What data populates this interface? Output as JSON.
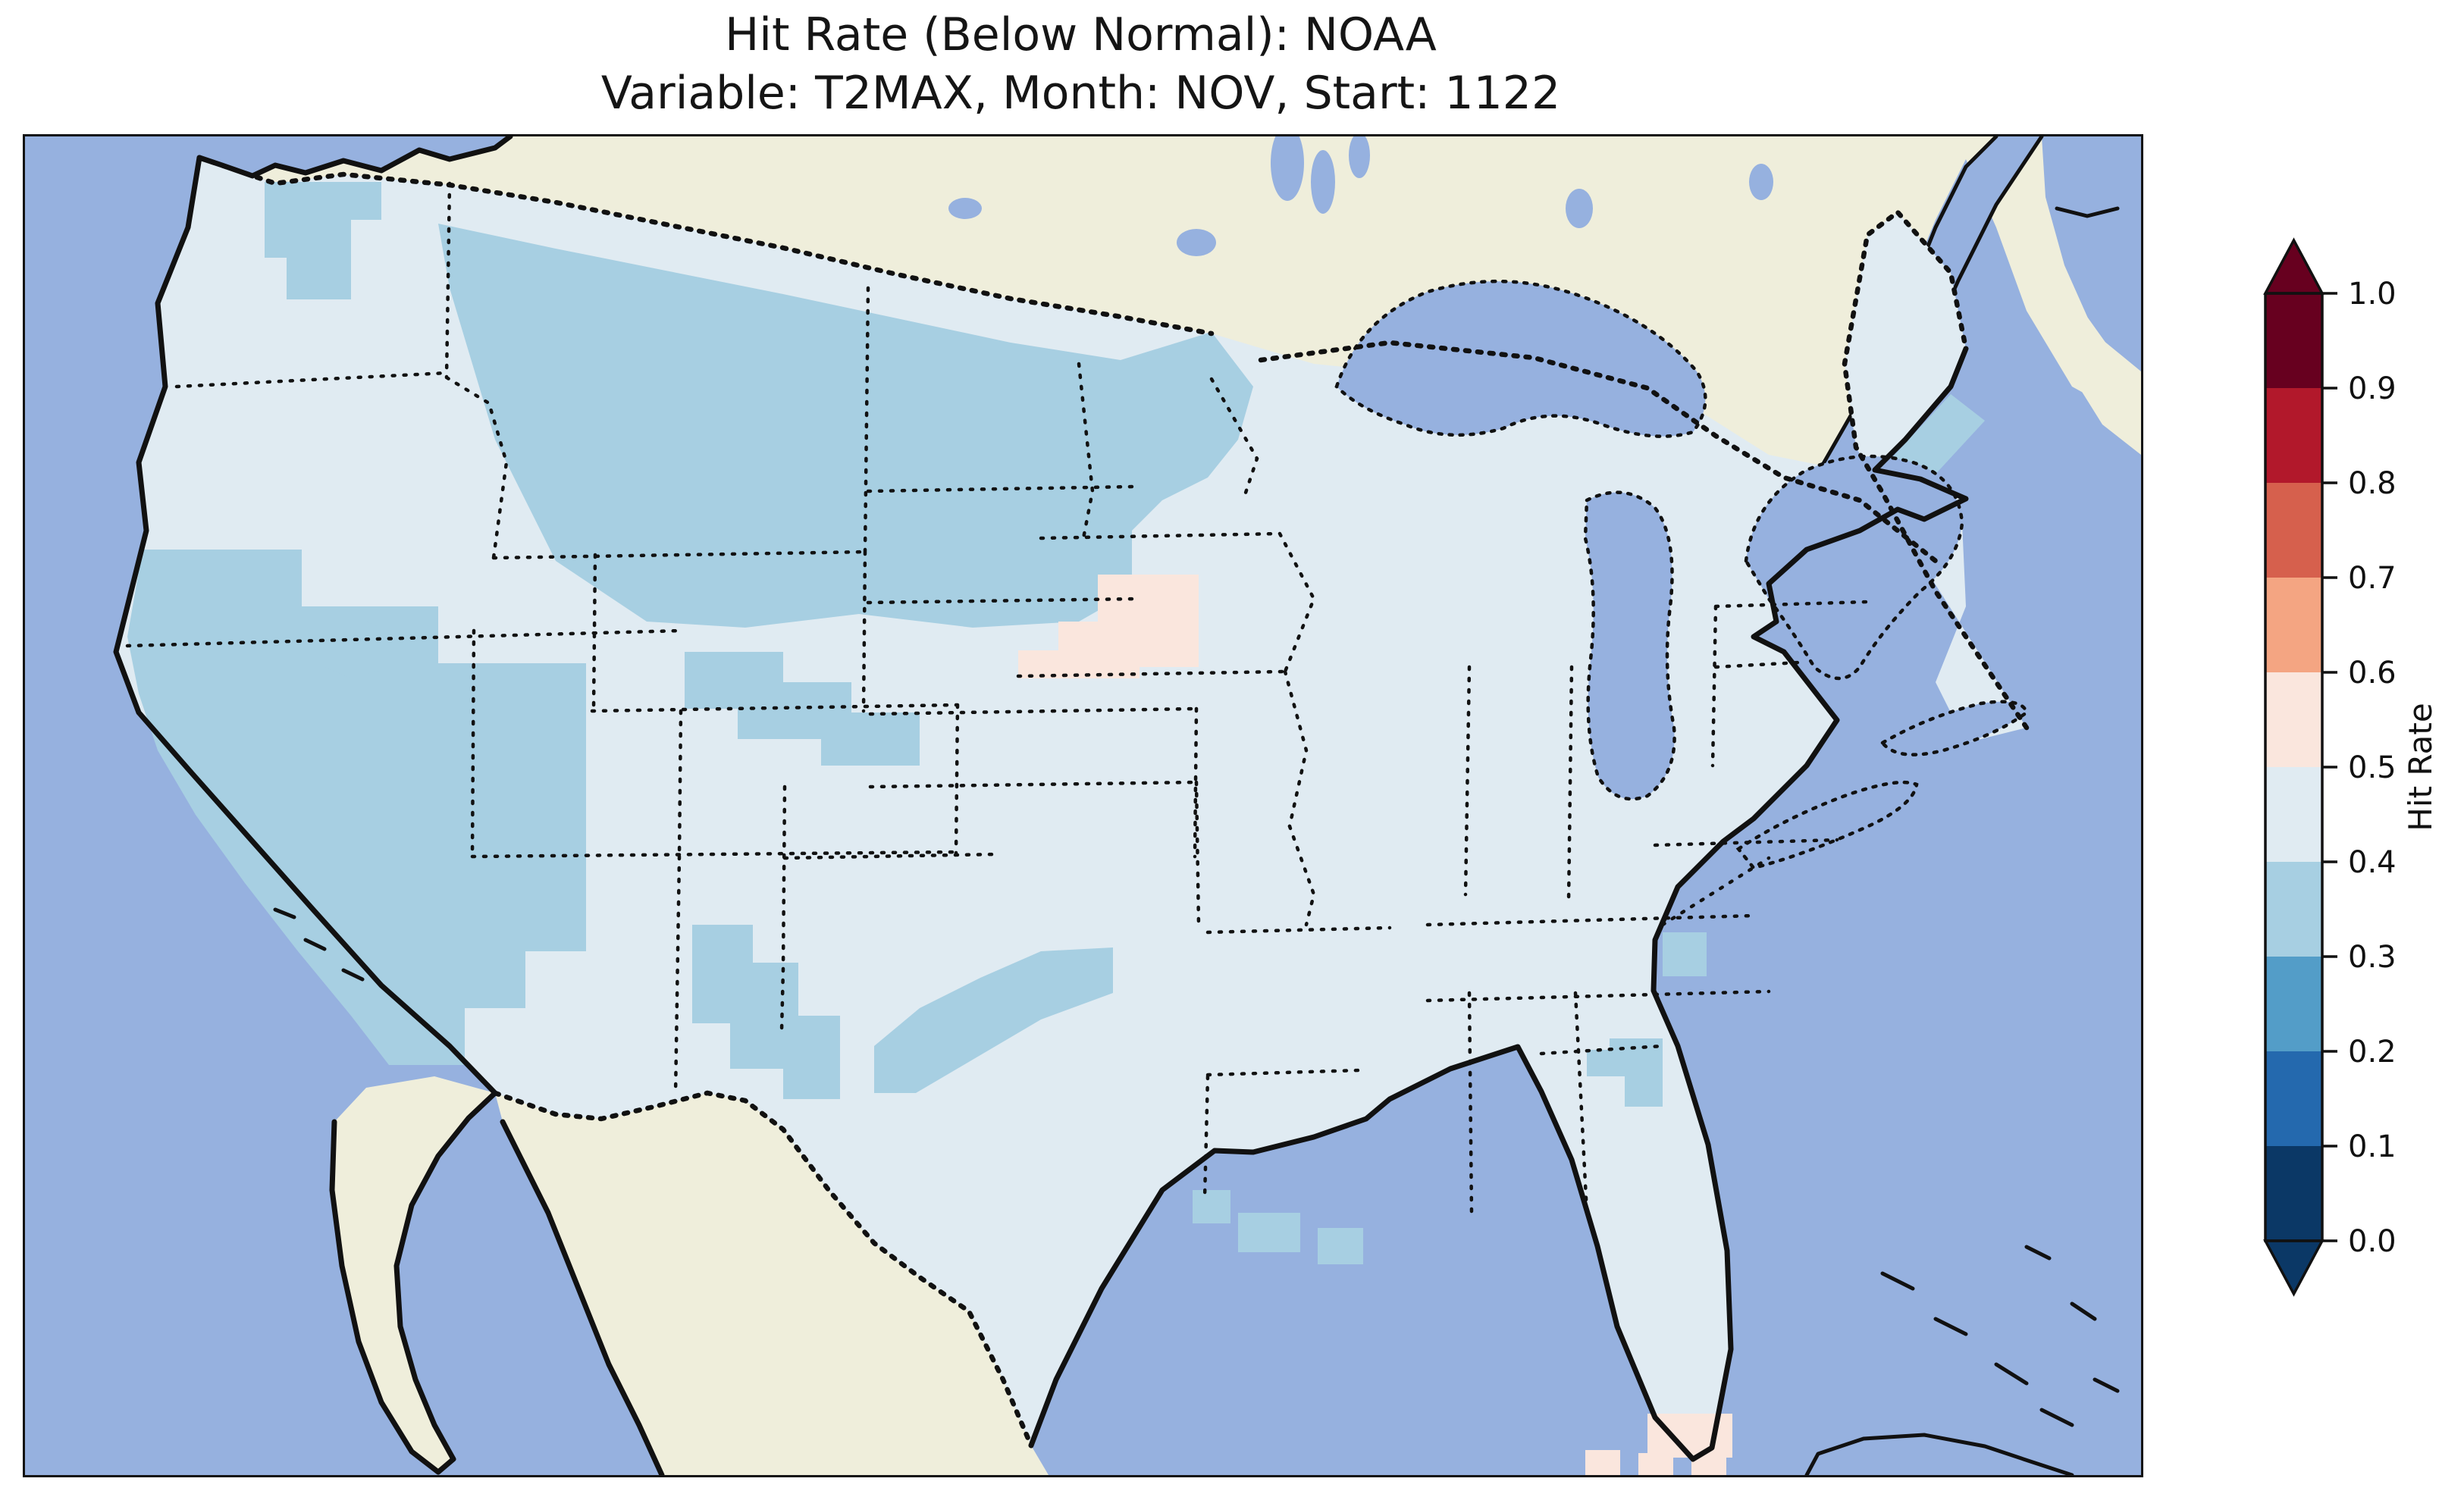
{
  "title": {
    "line1": "Hit Rate (Below Normal): NOAA",
    "line2": "Variable: T2MAX, Month: NOV, Start: 1122"
  },
  "palette": {
    "ocean": "#96b1df",
    "land": "#efeedb",
    "coast": "#111111",
    "bin01": "#0b3866",
    "bin12": "#2469ae",
    "bin23": "#539dc8",
    "bin34": "#a7cfe2",
    "bin45": "#e0ebf2",
    "bin56": "#fae6dd",
    "bin67": "#f4a582",
    "bin78": "#d6604d",
    "bin89": "#b2182b",
    "bin910": "#67001f"
  },
  "colorbar": {
    "label": "Hit Rate",
    "extend": "both",
    "ticks_top_to_bottom": [
      "1.0",
      "0.9",
      "0.8",
      "0.7",
      "0.6",
      "0.5",
      "0.4",
      "0.3",
      "0.2",
      "0.1",
      "0.0"
    ],
    "bins_bottom_to_top": [
      {
        "range": "0.0-0.1",
        "color": "#0b3866"
      },
      {
        "range": "0.1-0.2",
        "color": "#2469ae"
      },
      {
        "range": "0.2-0.3",
        "color": "#539dc8"
      },
      {
        "range": "0.3-0.4",
        "color": "#a7cfe2"
      },
      {
        "range": "0.4-0.5",
        "color": "#e0ebf2"
      },
      {
        "range": "0.5-0.6",
        "color": "#fae6dd"
      },
      {
        "range": "0.6-0.7",
        "color": "#f4a582"
      },
      {
        "range": "0.7-0.8",
        "color": "#d6604d"
      },
      {
        "range": "0.8-0.9",
        "color": "#b2182b"
      },
      {
        "range": "0.9-1.0",
        "color": "#67001f"
      }
    ]
  },
  "chart_data": {
    "type": "heatmap",
    "subtype": "gridded geographic hit-rate map (matplotlib style)",
    "title": "Hit Rate (Below Normal): NOAA",
    "subtitle": "Variable: T2MAX, Month: NOV, Start: 1122",
    "region": "Continental United States, with Canada/Mexico shown as no-data land, Pacific, Atlantic, Gulf of Mexico and Great Lakes as water",
    "colorbar": {
      "label": "Hit Rate",
      "min": 0.0,
      "max": 1.0,
      "tick_step": 0.1,
      "extend": "both",
      "colormap": "RdBu reversed, 10 discrete bins"
    },
    "legend_position": "right",
    "grid": "approx 1-degree square cells over CONUS only",
    "observations": [
      {
        "area": "Most of CONUS (background)",
        "hit_rate_bin": "0.4-0.5"
      },
      {
        "area": "Northern Plains: E Montana, N Wyoming, North Dakota, South Dakota, W Minnesota",
        "hit_rate_bin": "0.3-0.4"
      },
      {
        "area": "Central/Southern California and W Nevada",
        "hit_rate_bin": "0.3-0.4"
      },
      {
        "area": "Eastern Washington patch",
        "hit_rate_bin": "0.3-0.4"
      },
      {
        "area": "Small Utah patch",
        "hit_rate_bin": "0.3-0.4"
      },
      {
        "area": "Colorado-Kansas border patch",
        "hit_rate_bin": "0.3-0.4"
      },
      {
        "area": "Eastern New Mexico / West Texas patch",
        "hit_rate_bin": "0.3-0.4"
      },
      {
        "area": "North-central Texas / SW Oklahoma patch",
        "hit_rate_bin": "0.3-0.4"
      },
      {
        "area": "Coastal Maine and coastal New England band",
        "hit_rate_bin": "0.3-0.4"
      },
      {
        "area": "Georgia and South Carolina coastal cells",
        "hit_rate_bin": "0.3-0.4"
      },
      {
        "area": "Louisiana delta coastal cells",
        "hit_rate_bin": "0.3-0.4"
      },
      {
        "area": "Iowa patch",
        "hit_rate_bin": "0.5-0.6"
      },
      {
        "area": "South Florida tip and Florida Keys cells",
        "hit_rate_bin": "0.5-0.6"
      },
      {
        "area": "Great Lakes, oceans, Canada, Mexico",
        "hit_rate_bin": "no data"
      }
    ]
  }
}
